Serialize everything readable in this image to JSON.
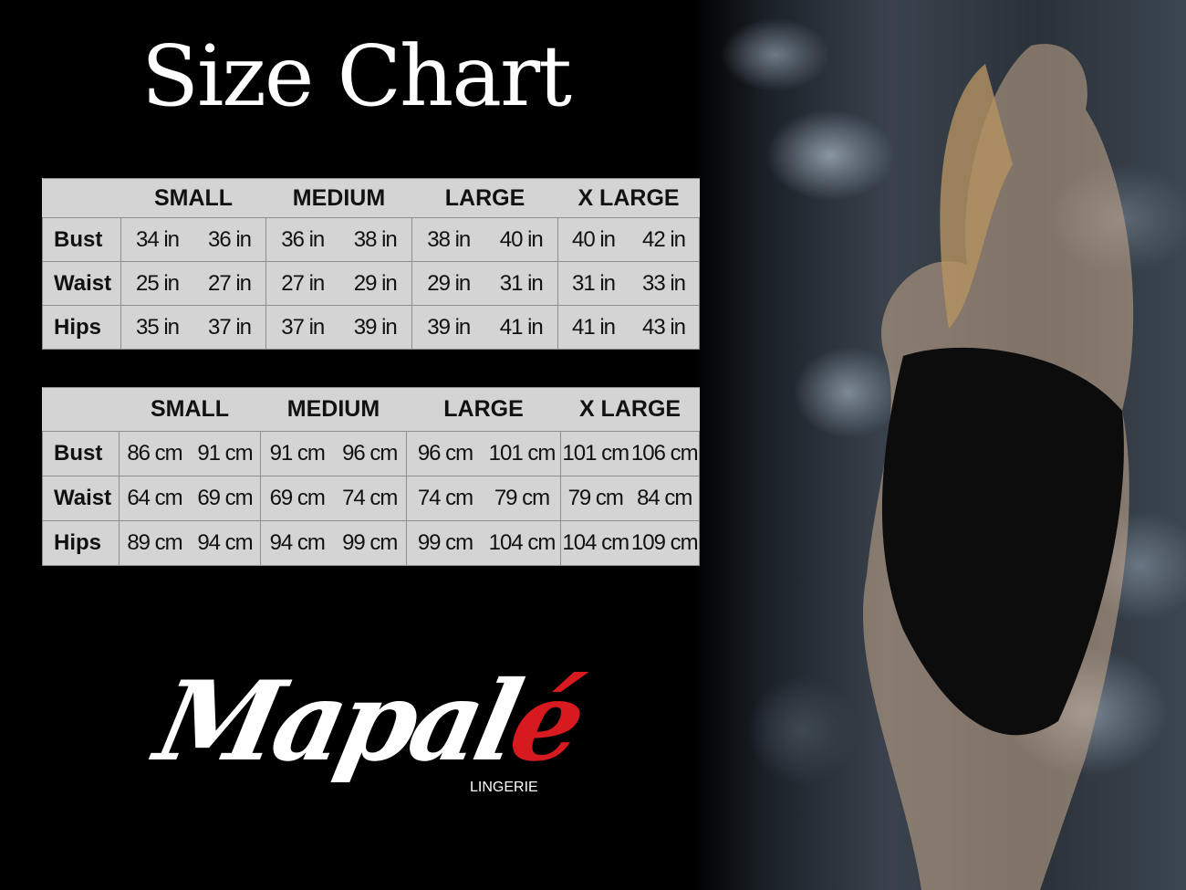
{
  "title": "Size Chart",
  "sizes": [
    "SMALL",
    "MEDIUM",
    "LARGE",
    "X LARGE"
  ],
  "inches_table": {
    "rows": [
      {
        "label": "Bust",
        "values": [
          "34 in",
          "36 in",
          "36 in",
          "38 in",
          "38 in",
          "40 in",
          "40 in",
          "42 in"
        ]
      },
      {
        "label": "Waist",
        "values": [
          "25 in",
          "27 in",
          "27 in",
          "29 in",
          "29 in",
          "31 in",
          "31 in",
          "33 in"
        ]
      },
      {
        "label": "Hips",
        "values": [
          "35 in",
          "37 in",
          "37 in",
          "39 in",
          "39 in",
          "41 in",
          "41 in",
          "43 in"
        ]
      }
    ]
  },
  "cm_table": {
    "rows": [
      {
        "label": "Bust",
        "values": [
          "86 cm",
          "91 cm",
          "91 cm",
          "96 cm",
          "96 cm",
          "101 cm",
          "101 cm",
          "106 cm"
        ]
      },
      {
        "label": "Waist",
        "values": [
          "64 cm",
          "69 cm",
          "69 cm",
          "74 cm",
          "74 cm",
          "79  cm",
          "79 cm",
          "84 cm"
        ]
      },
      {
        "label": "Hips",
        "values": [
          "89 cm",
          "94 cm",
          "94 cm",
          "99 cm",
          "99 cm",
          "104 cm",
          "104 cm",
          "109 cm"
        ]
      }
    ]
  },
  "brand": {
    "logo_text": "Mapalé",
    "subtitle": "LINGERIE",
    "accent_color": "#d71920"
  },
  "table_bg": "#d4d4d4"
}
